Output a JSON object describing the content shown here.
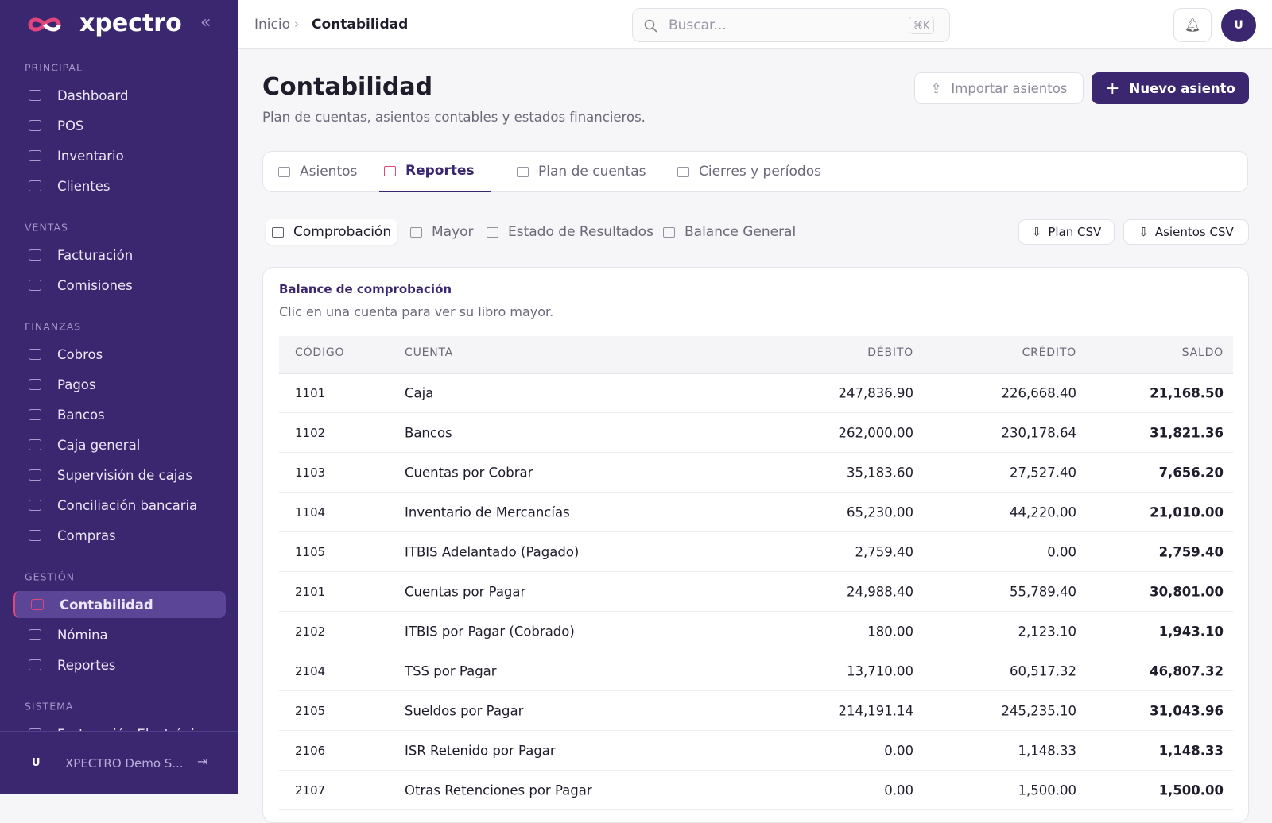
{
  "sidebar": {
    "brand": "xpectro",
    "sections": [
      {
        "title": "PRINCIPAL",
        "items": [
          {
            "label": "Dashboard"
          },
          {
            "label": "POS"
          },
          {
            "label": "Inventario"
          },
          {
            "label": "Clientes"
          }
        ]
      },
      {
        "title": "VENTAS",
        "items": [
          {
            "label": "Facturación"
          },
          {
            "label": "Comisiones"
          }
        ]
      },
      {
        "title": "FINANZAS",
        "items": [
          {
            "label": "Cobros"
          },
          {
            "label": "Pagos"
          },
          {
            "label": "Bancos"
          },
          {
            "label": "Caja general"
          },
          {
            "label": "Supervisión de cajas"
          },
          {
            "label": "Conciliación bancaria"
          },
          {
            "label": "Compras"
          }
        ]
      },
      {
        "title": "GESTIÓN",
        "items": [
          {
            "label": "Contabilidad",
            "active": true
          },
          {
            "label": "Nómina"
          },
          {
            "label": "Reportes"
          }
        ]
      },
      {
        "title": "SISTEMA",
        "items": [
          {
            "label": "Facturación Electrónica"
          }
        ]
      }
    ],
    "user": {
      "initial": "U",
      "name": "XPECTRO Demo S..."
    }
  },
  "topbar": {
    "breadcrumb": [
      "Inicio",
      "Contabilidad"
    ],
    "search": "Buscar...",
    "shortcut": "⌘K",
    "avatar": "U"
  },
  "header": {
    "title": "Contabilidad",
    "subtitle": "Plan de cuentas, asientos contables y estados financieros.",
    "import_button": "Importar asientos",
    "new_button": "Nuevo asiento"
  },
  "tabs": [
    {
      "label": "Asientos"
    },
    {
      "label": "Reportes",
      "active": true
    },
    {
      "label": "Plan de cuentas"
    },
    {
      "label": "Cierres y períodos"
    }
  ],
  "subtabs": [
    {
      "label": "Comprobación",
      "active": true
    },
    {
      "label": "Mayor"
    },
    {
      "label": "Estado de Resultados"
    },
    {
      "label": "Balance General"
    }
  ],
  "exports": [
    "Plan CSV",
    "Asientos CSV"
  ],
  "card": {
    "title": "Balance de comprobación",
    "subtitle": "Clic en una cuenta para ver su libro mayor.",
    "table": {
      "columns": [
        "CÓDIGO",
        "CUENTA",
        "DÉBITO",
        "CRÉDITO",
        "SALDO"
      ],
      "rows": [
        [
          "1101",
          "Caja",
          "247,836.90",
          "226,668.40",
          "21,168.50"
        ],
        [
          "1102",
          "Bancos",
          "262,000.00",
          "230,178.64",
          "31,821.36"
        ],
        [
          "1103",
          "Cuentas por Cobrar",
          "35,183.60",
          "27,527.40",
          "7,656.20"
        ],
        [
          "1104",
          "Inventario de Mercancías",
          "65,230.00",
          "44,220.00",
          "21,010.00"
        ],
        [
          "1105",
          "ITBIS Adelantado (Pagado)",
          "2,759.40",
          "0.00",
          "2,759.40"
        ],
        [
          "2101",
          "Cuentas por Pagar",
          "24,988.40",
          "55,789.40",
          "30,801.00"
        ],
        [
          "2102",
          "ITBIS por Pagar (Cobrado)",
          "180.00",
          "2,123.10",
          "1,943.10"
        ],
        [
          "2104",
          "TSS por Pagar",
          "13,710.00",
          "60,517.32",
          "46,807.32"
        ],
        [
          "2105",
          "Sueldos por Pagar",
          "214,191.14",
          "245,235.10",
          "31,043.96"
        ],
        [
          "2106",
          "ISR Retenido por Pagar",
          "0.00",
          "1,148.33",
          "1,148.33"
        ],
        [
          "2107",
          "Otras Retenciones por Pagar",
          "0.00",
          "1,500.00",
          "1,500.00"
        ]
      ]
    }
  }
}
